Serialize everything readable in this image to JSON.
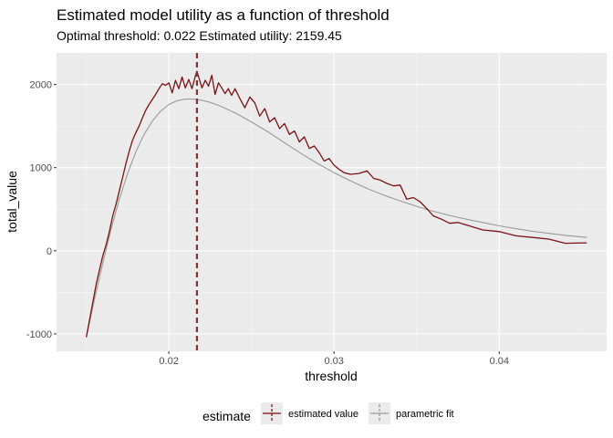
{
  "chart_data": {
    "type": "line",
    "title": "Estimated model utility as a function of threshold",
    "subtitle": "Optimal threshold: 0.022 Estimated utility: 2159.45",
    "xlabel": "threshold",
    "ylabel": "total_value",
    "xlim": [
      0.0132,
      0.0465
    ],
    "ylim": [
      -1210,
      2380
    ],
    "x_ticks": [
      0.02,
      0.03,
      0.04
    ],
    "x_tick_labels": [
      "0.02",
      "0.03",
      "0.04"
    ],
    "y_ticks": [
      -1000,
      0,
      1000,
      2000
    ],
    "y_tick_labels": [
      "-1000",
      "0",
      "1000",
      "2000"
    ],
    "grid": true,
    "legend_placement": "bottom",
    "legend_title": "estimate",
    "optimal_threshold": 0.0217,
    "series": [
      {
        "name": "estimated value",
        "color": "#7b1113",
        "x": [
          0.015,
          0.0152,
          0.0154,
          0.0156,
          0.0158,
          0.016,
          0.0162,
          0.0164,
          0.0166,
          0.0168,
          0.017,
          0.0172,
          0.0174,
          0.0176,
          0.0178,
          0.018,
          0.0182,
          0.0184,
          0.0186,
          0.0188,
          0.019,
          0.0192,
          0.0194,
          0.0196,
          0.0198,
          0.02,
          0.0202,
          0.0204,
          0.0206,
          0.0208,
          0.021,
          0.0212,
          0.0214,
          0.0216,
          0.0217,
          0.022,
          0.0222,
          0.0224,
          0.0226,
          0.0228,
          0.023,
          0.0232,
          0.0234,
          0.0236,
          0.0238,
          0.024,
          0.0243,
          0.0246,
          0.0249,
          0.0252,
          0.0255,
          0.0258,
          0.0261,
          0.0264,
          0.0267,
          0.027,
          0.0273,
          0.0276,
          0.0279,
          0.0282,
          0.0285,
          0.0288,
          0.0291,
          0.0294,
          0.0297,
          0.03,
          0.0303,
          0.0306,
          0.031,
          0.0315,
          0.032,
          0.0324,
          0.0328,
          0.0332,
          0.0336,
          0.034,
          0.0344,
          0.0348,
          0.0352,
          0.0356,
          0.036,
          0.0365,
          0.037,
          0.0375,
          0.038,
          0.039,
          0.04,
          0.041,
          0.042,
          0.043,
          0.044,
          0.0453
        ],
        "y": [
          -1040,
          -830,
          -620,
          -400,
          -230,
          -60,
          70,
          230,
          420,
          560,
          720,
          880,
          1050,
          1200,
          1330,
          1420,
          1500,
          1600,
          1690,
          1760,
          1820,
          1880,
          1950,
          2010,
          1990,
          2020,
          1900,
          2050,
          1950,
          2090,
          1960,
          2060,
          1950,
          2100,
          2159,
          1960,
          2050,
          1980,
          2110,
          1880,
          2020,
          1960,
          1890,
          1950,
          1870,
          1950,
          1830,
          1720,
          1850,
          1780,
          1620,
          1710,
          1550,
          1600,
          1470,
          1530,
          1400,
          1440,
          1310,
          1370,
          1230,
          1260,
          1180,
          1080,
          1110,
          1030,
          980,
          940,
          920,
          930,
          960,
          870,
          850,
          810,
          780,
          790,
          620,
          640,
          590,
          510,
          420,
          380,
          330,
          340,
          310,
          250,
          230,
          180,
          160,
          140,
          90,
          95
        ]
      },
      {
        "name": "parametric fit",
        "color": "#999999",
        "x": [
          0.015,
          0.0155,
          0.016,
          0.0165,
          0.017,
          0.0175,
          0.018,
          0.0185,
          0.019,
          0.0195,
          0.02,
          0.0205,
          0.021,
          0.0215,
          0.022,
          0.0225,
          0.023,
          0.024,
          0.025,
          0.026,
          0.027,
          0.028,
          0.029,
          0.03,
          0.031,
          0.032,
          0.033,
          0.034,
          0.035,
          0.036,
          0.037,
          0.038,
          0.039,
          0.04,
          0.041,
          0.042,
          0.043,
          0.044,
          0.0453
        ],
        "y": [
          -1040,
          -580,
          -150,
          260,
          620,
          930,
          1190,
          1400,
          1560,
          1680,
          1760,
          1805,
          1825,
          1825,
          1810,
          1785,
          1750,
          1660,
          1550,
          1430,
          1300,
          1170,
          1050,
          940,
          840,
          750,
          670,
          600,
          535,
          475,
          425,
          380,
          340,
          300,
          265,
          235,
          210,
          185,
          160
        ]
      }
    ]
  }
}
